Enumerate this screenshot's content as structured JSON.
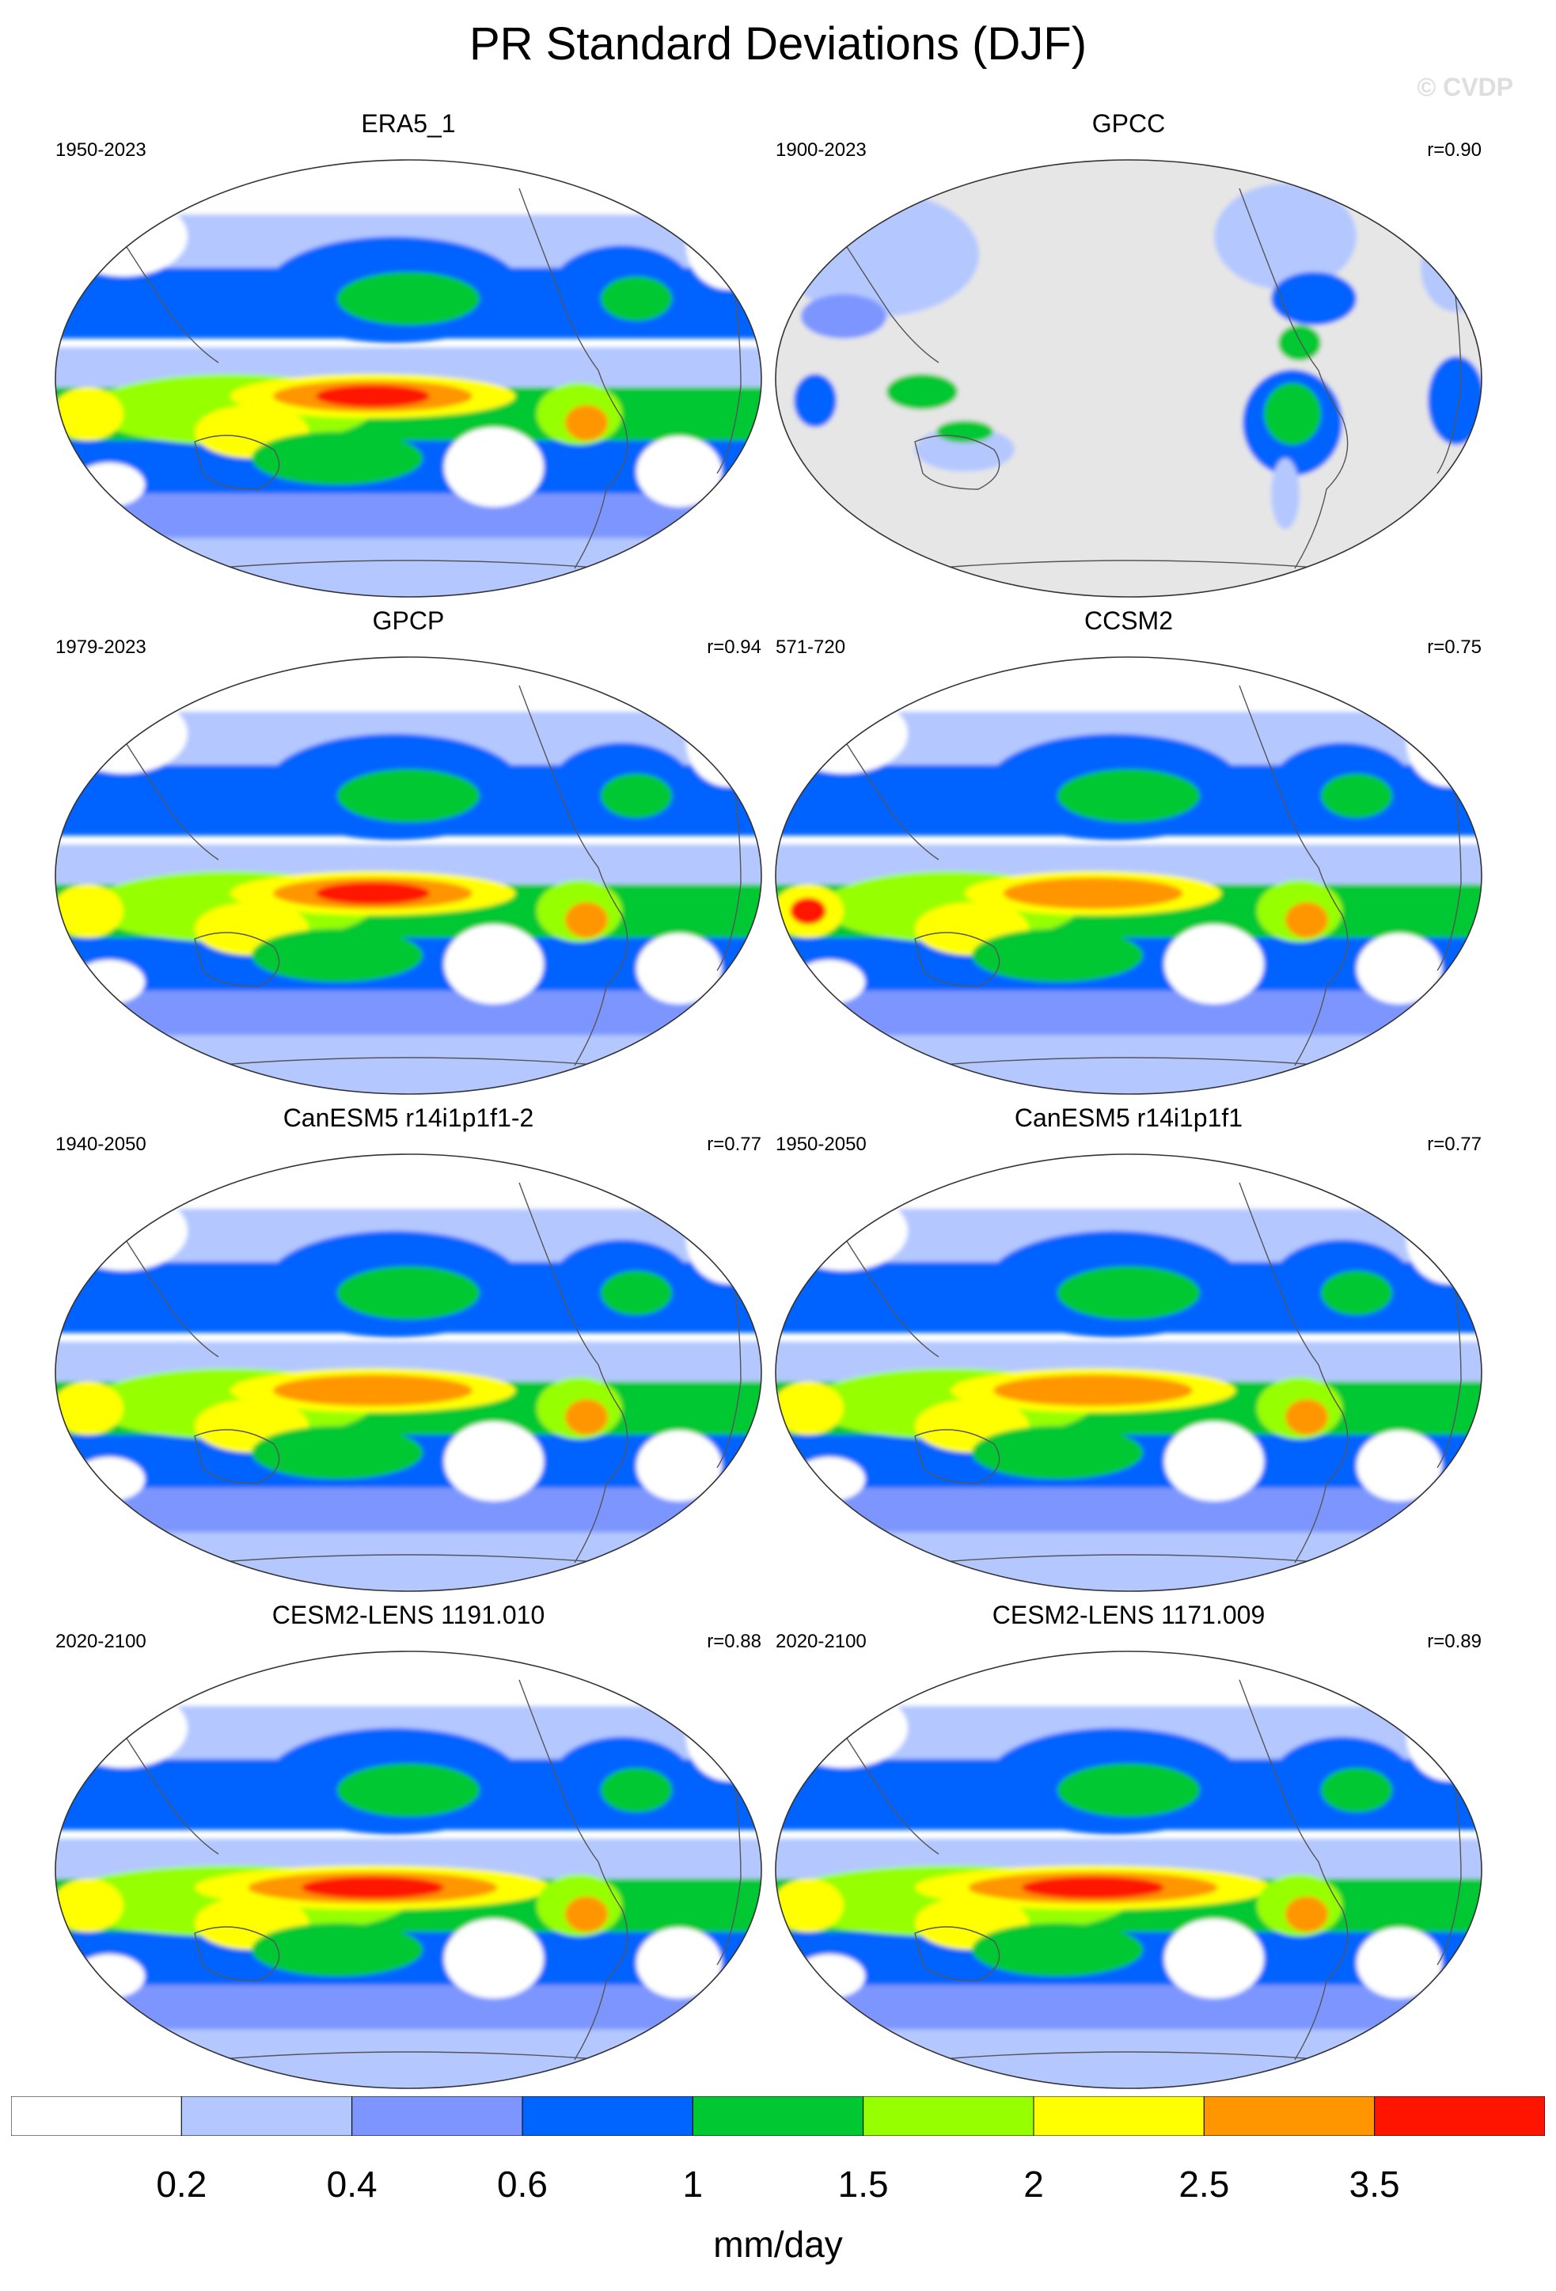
{
  "title": "PR Standard Deviations (DJF)",
  "watermark": "© CVDP",
  "panels": [
    {
      "title": "ERA5_1",
      "period": "1950-2023",
      "corr": "",
      "land_only": false
    },
    {
      "title": "GPCC",
      "period": "1900-2023",
      "corr": "r=0.90",
      "land_only": true
    },
    {
      "title": "GPCP",
      "period": "1979-2023",
      "corr": "r=0.94",
      "land_only": false
    },
    {
      "title": "CCSM2",
      "period": "571-720",
      "corr": "r=0.75",
      "land_only": false
    },
    {
      "title": "CanESM5 r14i1p1f1-2",
      "period": "1940-2050",
      "corr": "r=0.77",
      "land_only": false
    },
    {
      "title": "CanESM5 r14i1p1f1",
      "period": "1950-2050",
      "corr": "r=0.77",
      "land_only": false
    },
    {
      "title": "CESM2-LENS 1191.010",
      "period": "2020-2100",
      "corr": "r=0.88",
      "land_only": false
    },
    {
      "title": "CESM2-LENS 1171.009",
      "period": "2020-2100",
      "corr": "r=0.89",
      "land_only": false
    }
  ],
  "colorbar": {
    "labels": [
      "0.2",
      "0.4",
      "0.6",
      "1",
      "1.5",
      "2",
      "2.5",
      "3.5"
    ],
    "colors": [
      "#ffffff",
      "#b4c8ff",
      "#7d96ff",
      "#0064ff",
      "#00c832",
      "#96ff00",
      "#ffff00",
      "#ff9600",
      "#ff1400"
    ],
    "units": "mm/day"
  },
  "missing_color": "#e6e6e6"
}
